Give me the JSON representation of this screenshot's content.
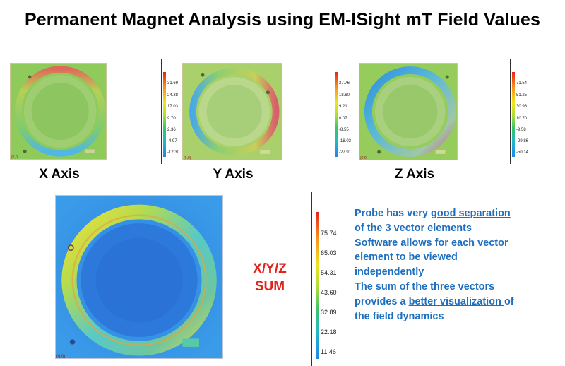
{
  "title": "Permanent Magnet Analysis using EM-ISight mT Field Values",
  "panels": {
    "x": {
      "label": "X Axis",
      "scale": [
        "31.69",
        "24.38",
        "17.03",
        "9.70",
        "2.36",
        "-4.97",
        "-12.30"
      ],
      "corner": "(0,0)"
    },
    "y": {
      "label": "Y Axis",
      "scale": [
        "27.76",
        "18.80",
        "9.21",
        "0.07",
        "-8.55",
        "-18.03",
        "-27.91"
      ],
      "corner": "(0,0)"
    },
    "z": {
      "label": "Z Axis",
      "scale": [
        "71.54",
        "51.25",
        "30.96",
        "10.70",
        "-9.58",
        "-29.86",
        "-50.14"
      ],
      "corner": "(0,0)"
    },
    "sum": {
      "label_line1": "X/Y/Z",
      "label_line2": "SUM",
      "scale": [
        "75.74",
        "65.03",
        "54.31",
        "43.60",
        "32.89",
        "22.18",
        "11.46"
      ],
      "corner": "(0,0)"
    }
  },
  "notes": {
    "l1_pre": "Probe has very ",
    "l1_u": "good separation",
    "l2": "of the 3 vector elements",
    "l3_pre": "Software allows for ",
    "l3_u": "each vector",
    "l4_u": "element",
    "l4_post": " to be viewed",
    "l5": "independently",
    "l6": "The sum of the three vectors",
    "l7_pre": "provides a ",
    "l7_u": "better visualization ",
    "l7_post": "of",
    "l8": "the field dynamics"
  },
  "colors": {
    "notes_text": "#1f6fbf",
    "sum_label": "#e0241b",
    "scale_top": "#e8221a",
    "scale_bottom": "#1f86ea"
  }
}
